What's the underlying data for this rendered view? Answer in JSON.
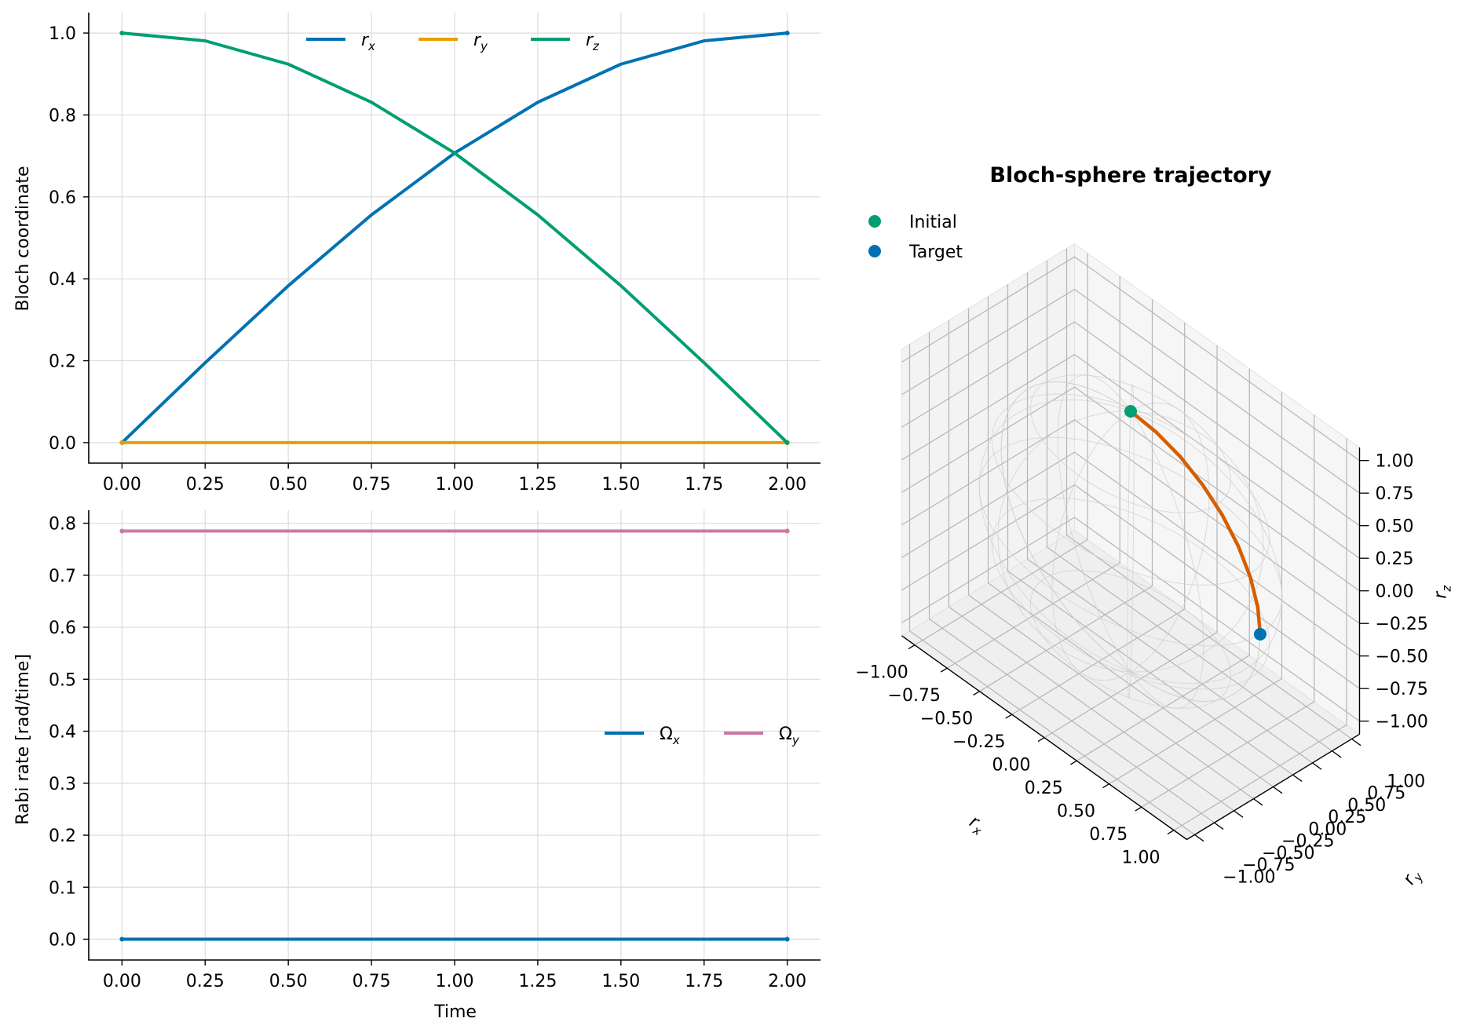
{
  "chart_data": [
    {
      "type": "line",
      "xlabel": "",
      "ylabel": "Bloch coordinate",
      "xlim": [
        -0.1,
        2.1
      ],
      "ylim": [
        -0.05,
        1.05
      ],
      "xticks": [
        "0.00",
        "0.25",
        "0.50",
        "0.75",
        "1.00",
        "1.25",
        "1.50",
        "1.75",
        "2.00"
      ],
      "yticks": [
        "0.0",
        "0.2",
        "0.4",
        "0.6",
        "0.8",
        "1.0"
      ],
      "grid": true,
      "legend": "top-center",
      "series": [
        {
          "name": "r",
          "sub": "x",
          "color": "#0072B2",
          "x": [
            0,
            0.25,
            0.5,
            0.75,
            1.0,
            1.25,
            1.5,
            1.75,
            2.0
          ],
          "y": [
            0.0,
            0.195,
            0.383,
            0.556,
            0.707,
            0.831,
            0.924,
            0.981,
            1.0
          ]
        },
        {
          "name": "r",
          "sub": "y",
          "color": "#E69F00",
          "x": [
            0,
            2.0
          ],
          "y": [
            0.0,
            0.0
          ]
        },
        {
          "name": "r",
          "sub": "z",
          "color": "#009E73",
          "x": [
            0,
            0.25,
            0.5,
            0.75,
            1.0,
            1.25,
            1.5,
            1.75,
            2.0
          ],
          "y": [
            1.0,
            0.981,
            0.924,
            0.831,
            0.707,
            0.556,
            0.383,
            0.195,
            0.0
          ]
        }
      ]
    },
    {
      "type": "line",
      "xlabel": "Time",
      "ylabel": "Rabi rate [rad/time]",
      "xlim": [
        -0.1,
        2.1
      ],
      "ylim": [
        -0.04,
        0.825
      ],
      "xticks": [
        "0.00",
        "0.25",
        "0.50",
        "0.75",
        "1.00",
        "1.25",
        "1.50",
        "1.75",
        "2.00"
      ],
      "yticks": [
        "0.0",
        "0.1",
        "0.2",
        "0.3",
        "0.4",
        "0.5",
        "0.6",
        "0.7",
        "0.8"
      ],
      "grid": true,
      "legend": "center-right",
      "series": [
        {
          "name": "Ω",
          "sub": "x",
          "color": "#0072B2",
          "x": [
            0,
            2.0
          ],
          "y": [
            0.0,
            0.0
          ]
        },
        {
          "name": "Ω",
          "sub": "y",
          "color": "#CC79A7",
          "x": [
            0,
            2.0
          ],
          "y": [
            0.785,
            0.785
          ]
        }
      ]
    },
    {
      "type": "scatter",
      "title": "Bloch-sphere trajectory",
      "xlabel": "r",
      "xlabel_sub": "x",
      "ylabel": "r",
      "ylabel_sub": "y",
      "zlabel": "r",
      "zlabel_sub": "z",
      "xticks": [
        "−1.00",
        "−0.75",
        "−0.50",
        "−0.25",
        "0.00",
        "0.25",
        "0.50",
        "0.75",
        "1.00"
      ],
      "yticks": [
        "−1.00",
        "−0.75",
        "−0.50",
        "−0.25",
        "0.00",
        "0.25",
        "0.50",
        "0.75",
        "1.00"
      ],
      "zticks": [
        "−1.00",
        "−0.75",
        "−0.50",
        "−0.25",
        "0.00",
        "0.25",
        "0.50",
        "0.75",
        "1.00"
      ],
      "legend": "top-left",
      "trajectory_color": "#D55E00",
      "trajectory": {
        "x": [
          0.0,
          0.195,
          0.383,
          0.556,
          0.707,
          0.831,
          0.924,
          0.981,
          1.0
        ],
        "y": [
          0,
          0,
          0,
          0,
          0,
          0,
          0,
          0,
          0
        ],
        "z": [
          1.0,
          0.981,
          0.924,
          0.831,
          0.707,
          0.556,
          0.383,
          0.195,
          0.0
        ]
      },
      "points": [
        {
          "name": "Initial",
          "color": "#009E73",
          "x": 0.0,
          "y": 0.0,
          "z": 1.0
        },
        {
          "name": "Target",
          "color": "#0072B2",
          "x": 1.0,
          "y": 0.0,
          "z": 0.0
        }
      ]
    }
  ]
}
